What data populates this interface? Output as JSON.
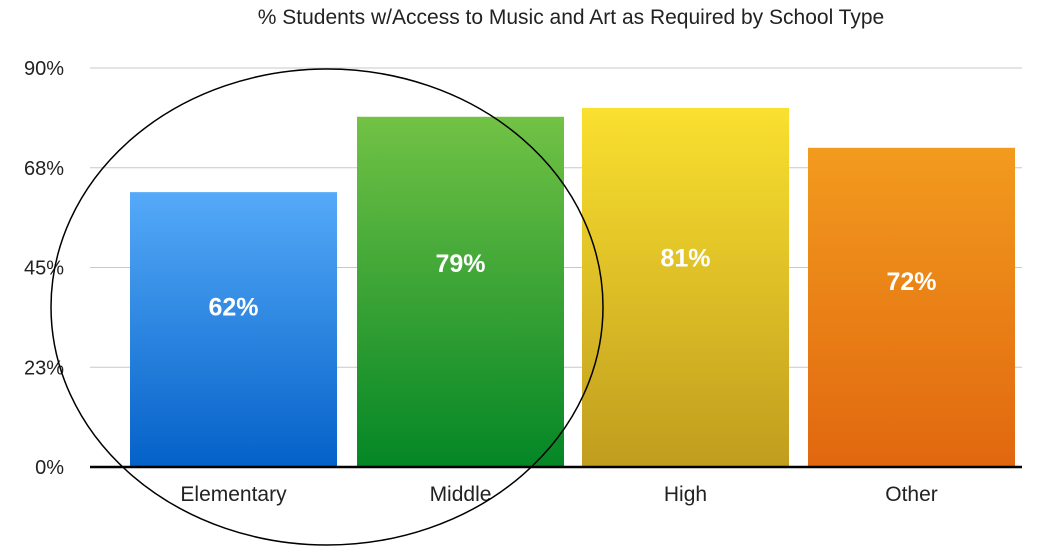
{
  "chart_data": {
    "type": "bar",
    "title": "% Students w/Access to Music and Art as Required by School Type",
    "categories": [
      "Elementary",
      "Middle",
      "High",
      "Other"
    ],
    "values": [
      62,
      79,
      81,
      72
    ],
    "data_labels": [
      "62%",
      "79%",
      "81%",
      "72%"
    ],
    "xlabel": "",
    "ylabel": "",
    "ylim": [
      0,
      90
    ],
    "yticks": [
      0,
      22.5,
      45,
      67.5,
      90
    ],
    "ytick_labels": [
      "0%",
      "23%",
      "45%",
      "68%",
      "90%"
    ],
    "grid": true,
    "legend": "none",
    "colors": [
      {
        "top": "#55aaf8",
        "bottom": "#0461c8"
      },
      {
        "top": "#72c245",
        "bottom": "#048626"
      },
      {
        "top": "#fae02f",
        "bottom": "#c09d1e"
      },
      {
        "top": "#f29b1e",
        "bottom": "#e1670f"
      }
    ],
    "annotation": "circle"
  }
}
